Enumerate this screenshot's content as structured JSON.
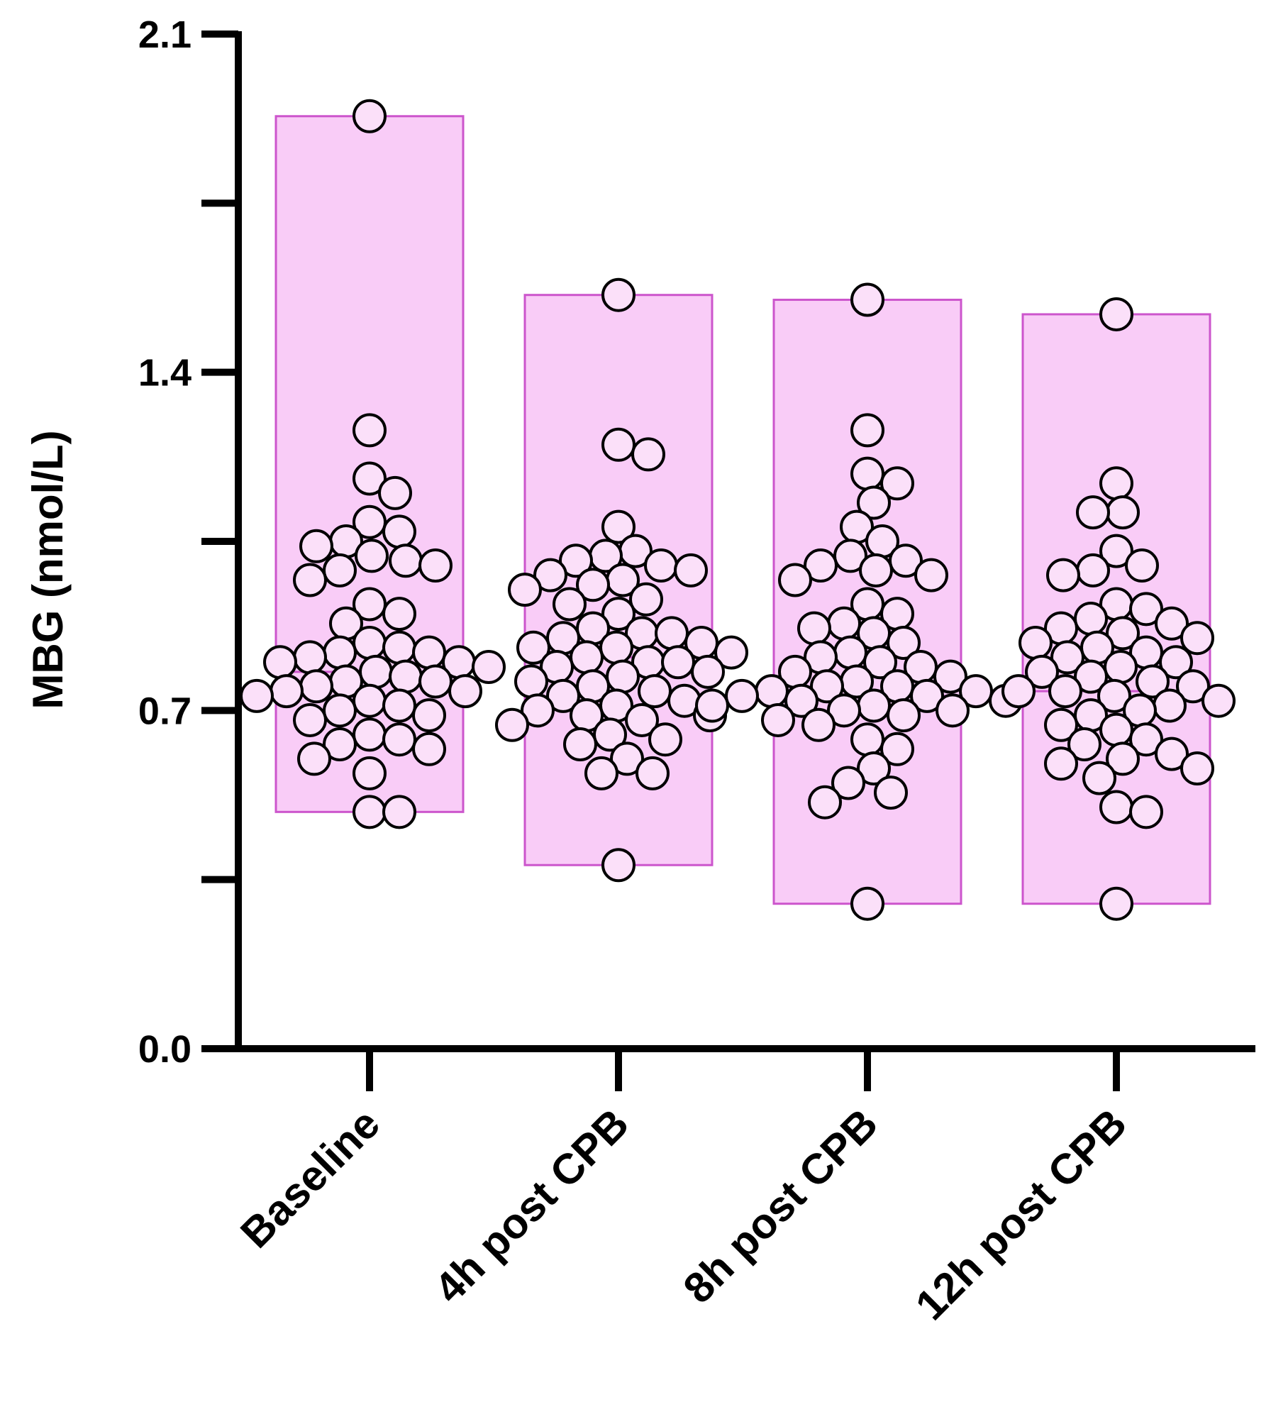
{
  "chart_data": {
    "type": "scatter",
    "subtype": "floating-bar-with-dots",
    "ylabel": "MBG (nmol/L)",
    "xlabel": "",
    "ylim": [
      0.0,
      2.1
    ],
    "yticks": [
      {
        "value": 0.0,
        "label": "0.0"
      },
      {
        "value": 0.35,
        "label": ""
      },
      {
        "value": 0.7,
        "label": "0.7"
      },
      {
        "value": 1.05,
        "label": ""
      },
      {
        "value": 1.4,
        "label": "1.4"
      },
      {
        "value": 1.75,
        "label": ""
      },
      {
        "value": 2.1,
        "label": "2.1"
      }
    ],
    "categories": [
      "Baseline",
      "4h post CPB",
      "8h post CPB",
      "12h post CPB"
    ],
    "colors": {
      "bar_fill": "#f9ccf7",
      "bar_stroke": "#cc55cc",
      "point_fill": "#fbe0f9",
      "point_stroke": "#000000",
      "axis": "#000000"
    },
    "series": [
      {
        "name": "Baseline",
        "bar": {
          "min": 0.49,
          "max": 1.93
        },
        "mean": 0.78,
        "values": [
          1.93,
          1.28,
          1.18,
          1.15,
          1.09,
          1.07,
          1.05,
          1.04,
          1.02,
          1.01,
          1.0,
          0.99,
          0.97,
          0.92,
          0.9,
          0.88,
          0.84,
          0.83,
          0.82,
          0.82,
          0.81,
          0.8,
          0.8,
          0.79,
          0.78,
          0.77,
          0.76,
          0.76,
          0.75,
          0.74,
          0.74,
          0.73,
          0.72,
          0.71,
          0.7,
          0.69,
          0.68,
          0.65,
          0.64,
          0.63,
          0.62,
          0.6,
          0.57,
          0.49,
          0.49
        ]
      },
      {
        "name": "4h post CPB",
        "bar": {
          "min": 0.38,
          "max": 1.56
        },
        "mean": 0.81,
        "values": [
          1.56,
          1.25,
          1.23,
          1.08,
          1.03,
          1.02,
          1.01,
          1.0,
          0.99,
          0.98,
          0.97,
          0.96,
          0.95,
          0.93,
          0.92,
          0.9,
          0.87,
          0.86,
          0.86,
          0.85,
          0.84,
          0.83,
          0.83,
          0.82,
          0.81,
          0.8,
          0.8,
          0.79,
          0.78,
          0.77,
          0.76,
          0.75,
          0.74,
          0.73,
          0.72,
          0.71,
          0.7,
          0.69,
          0.69,
          0.68,
          0.67,
          0.65,
          0.64,
          0.63,
          0.6,
          0.57,
          0.57,
          0.38
        ]
      },
      {
        "name": "8h post CPB",
        "bar": {
          "min": 0.3,
          "max": 1.55
        },
        "mean": 0.73,
        "values": [
          1.55,
          1.28,
          1.19,
          1.17,
          1.13,
          1.08,
          1.05,
          1.02,
          1.01,
          1.0,
          0.99,
          0.98,
          0.97,
          0.92,
          0.9,
          0.88,
          0.87,
          0.86,
          0.84,
          0.82,
          0.81,
          0.8,
          0.79,
          0.78,
          0.77,
          0.76,
          0.75,
          0.75,
          0.74,
          0.74,
          0.73,
          0.73,
          0.72,
          0.72,
          0.71,
          0.71,
          0.7,
          0.7,
          0.69,
          0.68,
          0.67,
          0.64,
          0.62,
          0.58,
          0.55,
          0.53,
          0.51,
          0.3
        ]
      },
      {
        "name": "12h post CPB",
        "bar": {
          "min": 0.3,
          "max": 1.52
        },
        "mean": 0.74,
        "values": [
          1.52,
          1.17,
          1.11,
          1.11,
          1.03,
          1.0,
          0.99,
          0.98,
          0.92,
          0.91,
          0.89,
          0.88,
          0.87,
          0.86,
          0.85,
          0.84,
          0.83,
          0.82,
          0.81,
          0.8,
          0.79,
          0.78,
          0.77,
          0.76,
          0.75,
          0.74,
          0.74,
          0.73,
          0.72,
          0.71,
          0.7,
          0.69,
          0.67,
          0.66,
          0.64,
          0.63,
          0.61,
          0.6,
          0.59,
          0.58,
          0.56,
          0.5,
          0.49,
          0.3
        ]
      }
    ]
  }
}
